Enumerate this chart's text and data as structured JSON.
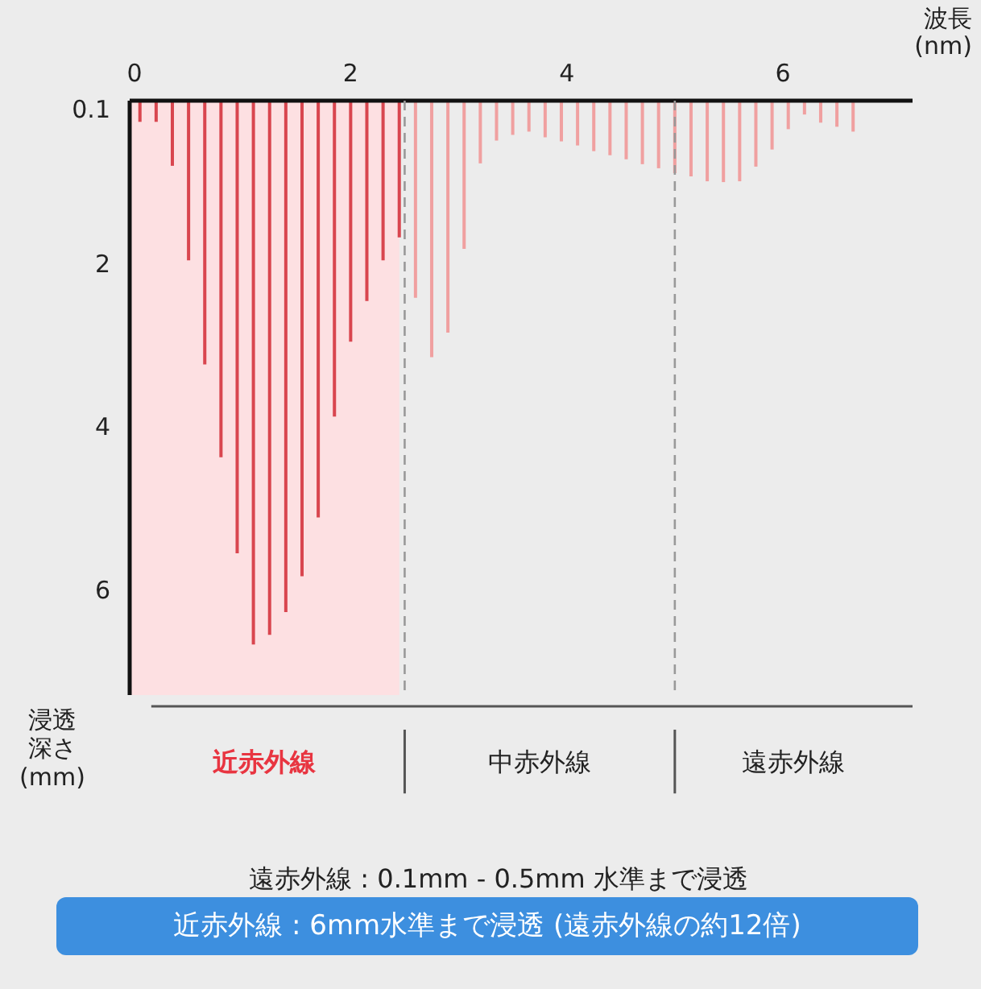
{
  "chart_data": {
    "type": "bar",
    "xlabel": "波長(nm)",
    "ylabel": "浸透深さ(mm)",
    "x": [
      0.05,
      0.2,
      0.35,
      0.5,
      0.65,
      0.8,
      0.95,
      1.1,
      1.25,
      1.4,
      1.55,
      1.7,
      1.85,
      2.0,
      2.15,
      2.3,
      2.45,
      2.6,
      2.75,
      2.9,
      3.05,
      3.2,
      3.35,
      3.5,
      3.65,
      3.8,
      3.95,
      4.1,
      4.25,
      4.4,
      4.55,
      4.7,
      4.85,
      5.0,
      5.15,
      5.3,
      5.45,
      5.6,
      5.75,
      5.9,
      6.05,
      6.2,
      6.35,
      6.5,
      6.65
    ],
    "values": [
      0.26,
      0.26,
      0.8,
      1.96,
      3.24,
      4.38,
      5.56,
      6.68,
      6.56,
      6.28,
      5.84,
      5.12,
      3.88,
      2.96,
      2.46,
      1.96,
      1.68,
      2.42,
      3.15,
      2.85,
      1.82,
      0.77,
      0.49,
      0.42,
      0.38,
      0.45,
      0.5,
      0.55,
      0.62,
      0.67,
      0.72,
      0.78,
      0.83,
      0.89,
      0.93,
      0.99,
      1.0,
      0.99,
      0.81,
      0.6,
      0.35,
      0.17,
      0.27,
      0.32,
      0.38
    ],
    "colors": [
      "#d9464f",
      "#d9464f",
      "#d9464f",
      "#d9464f",
      "#d9464f",
      "#d9464f",
      "#d9464f",
      "#d9464f",
      "#d9464f",
      "#d9464f",
      "#d9464f",
      "#d9464f",
      "#d9464f",
      "#d9464f",
      "#d9464f",
      "#d9464f",
      "#d9464f",
      "#f0a0a0",
      "#f0a0a0",
      "#f0a0a0",
      "#f0a0a0",
      "#f0a0a0",
      "#f0a0a0",
      "#f0a0a0",
      "#f0a0a0",
      "#f0a0a0",
      "#f0a0a0",
      "#f0a0a0",
      "#f0a0a0",
      "#f0a0a0",
      "#f0a0a0",
      "#f0a0a0",
      "#f0a0a0",
      "#f0a0a0",
      "#f0a0a0",
      "#f0a0a0",
      "#f0a0a0",
      "#f0a0a0",
      "#f0a0a0",
      "#f0a0a0",
      "#f0a0a0",
      "#f0a0a0",
      "#f0a0a0",
      "#f0a0a0",
      "#f0a0a0"
    ],
    "xlim": [
      -0.045,
      7.2
    ],
    "xticks": [
      0,
      2,
      4,
      6
    ],
    "ylim": [
      7.3,
      0
    ],
    "yticks": [
      0.1,
      2,
      4,
      6
    ],
    "grid": false,
    "bands": [
      {
        "axis": "x",
        "from": -0.045,
        "to": 2.45,
        "label": "近赤外線",
        "color": "#fde0e2"
      }
    ],
    "ref_lines": [
      {
        "axis": "x",
        "value": 2.5,
        "color": "#999999",
        "line_style": "dashed"
      },
      {
        "axis": "x",
        "value": 5.0,
        "color": "#999999",
        "line_style": "dashed"
      }
    ],
    "annotations": [
      "中赤外線",
      "遠赤外線",
      "遠赤外線 : 0.1mm - 0.5mm 水準まで浸透",
      "近赤外線 : 6mm水準まで浸透 (遠赤外線の約12倍)"
    ]
  }
}
